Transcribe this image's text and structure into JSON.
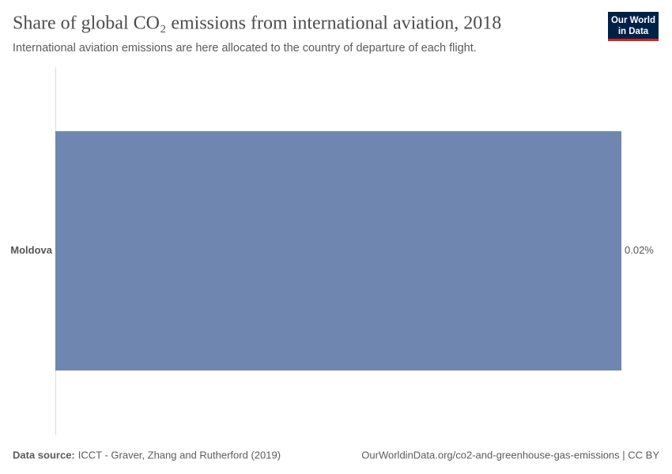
{
  "header": {
    "title": "Share of global CO₂ emissions from international aviation, 2018",
    "subtitle": "International aviation emissions are here allocated to the country of departure of each flight.",
    "logo": [
      "Our World",
      "in Data"
    ]
  },
  "chart_data": {
    "type": "bar",
    "categories": [
      "Moldova"
    ],
    "values": [
      0.02
    ],
    "value_labels": [
      "0.02%"
    ],
    "color": "#6f87b0"
  },
  "footer": {
    "source_label": "Data source:",
    "source": "ICCT - Graver, Zhang and Rutherford (2019)",
    "url": "OurWorldinData.org/co2-and-greenhouse-gas-emissions | CC BY"
  }
}
